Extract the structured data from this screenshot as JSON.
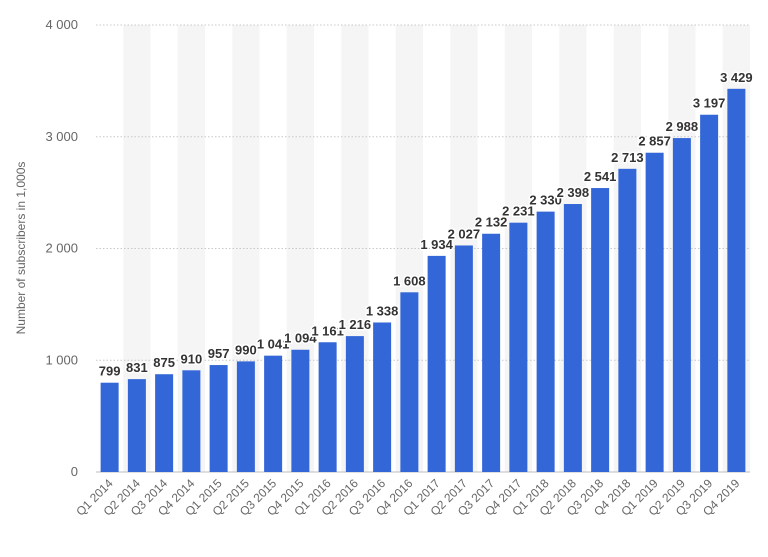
{
  "chart_data": {
    "type": "bar",
    "ylabel": "Number of subscribers in 1,000s",
    "ylim": [
      0,
      4000
    ],
    "yticks": [
      0,
      1000,
      2000,
      3000,
      4000
    ],
    "ytick_labels": [
      "0",
      "1 000",
      "2 000",
      "3 000",
      "4 000"
    ],
    "grid": true,
    "bar_color": "#3366d6",
    "categories": [
      "Q1 2014",
      "Q2 2014",
      "Q3 2014",
      "Q4 2014",
      "Q1 2015",
      "Q2 2015",
      "Q3 2015",
      "Q4 2015",
      "Q1 2016",
      "Q2 2016",
      "Q3 2016",
      "Q4 2016",
      "Q1 2017",
      "Q2 2017",
      "Q3 2017",
      "Q4 2017",
      "Q1 2018",
      "Q2 2018",
      "Q3 2018",
      "Q4 2018",
      "Q1 2019",
      "Q2 2019",
      "Q3 2019",
      "Q4 2019"
    ],
    "values": [
      799,
      831,
      875,
      910,
      957,
      990,
      1041,
      1094,
      1161,
      1216,
      1338,
      1608,
      1934,
      2027,
      2132,
      2231,
      2330,
      2398,
      2541,
      2713,
      2857,
      2988,
      3197,
      3429
    ],
    "value_labels": [
      "799",
      "831",
      "875",
      "910",
      "957",
      "990",
      "1 041",
      "1 094",
      "1 161",
      "1 216",
      "1 338",
      "1 608",
      "1 934",
      "2 027",
      "2 132",
      "2 231",
      "2 330",
      "2 398",
      "2 541",
      "2 713",
      "2 857",
      "2 988",
      "3 197",
      "3 429"
    ]
  }
}
